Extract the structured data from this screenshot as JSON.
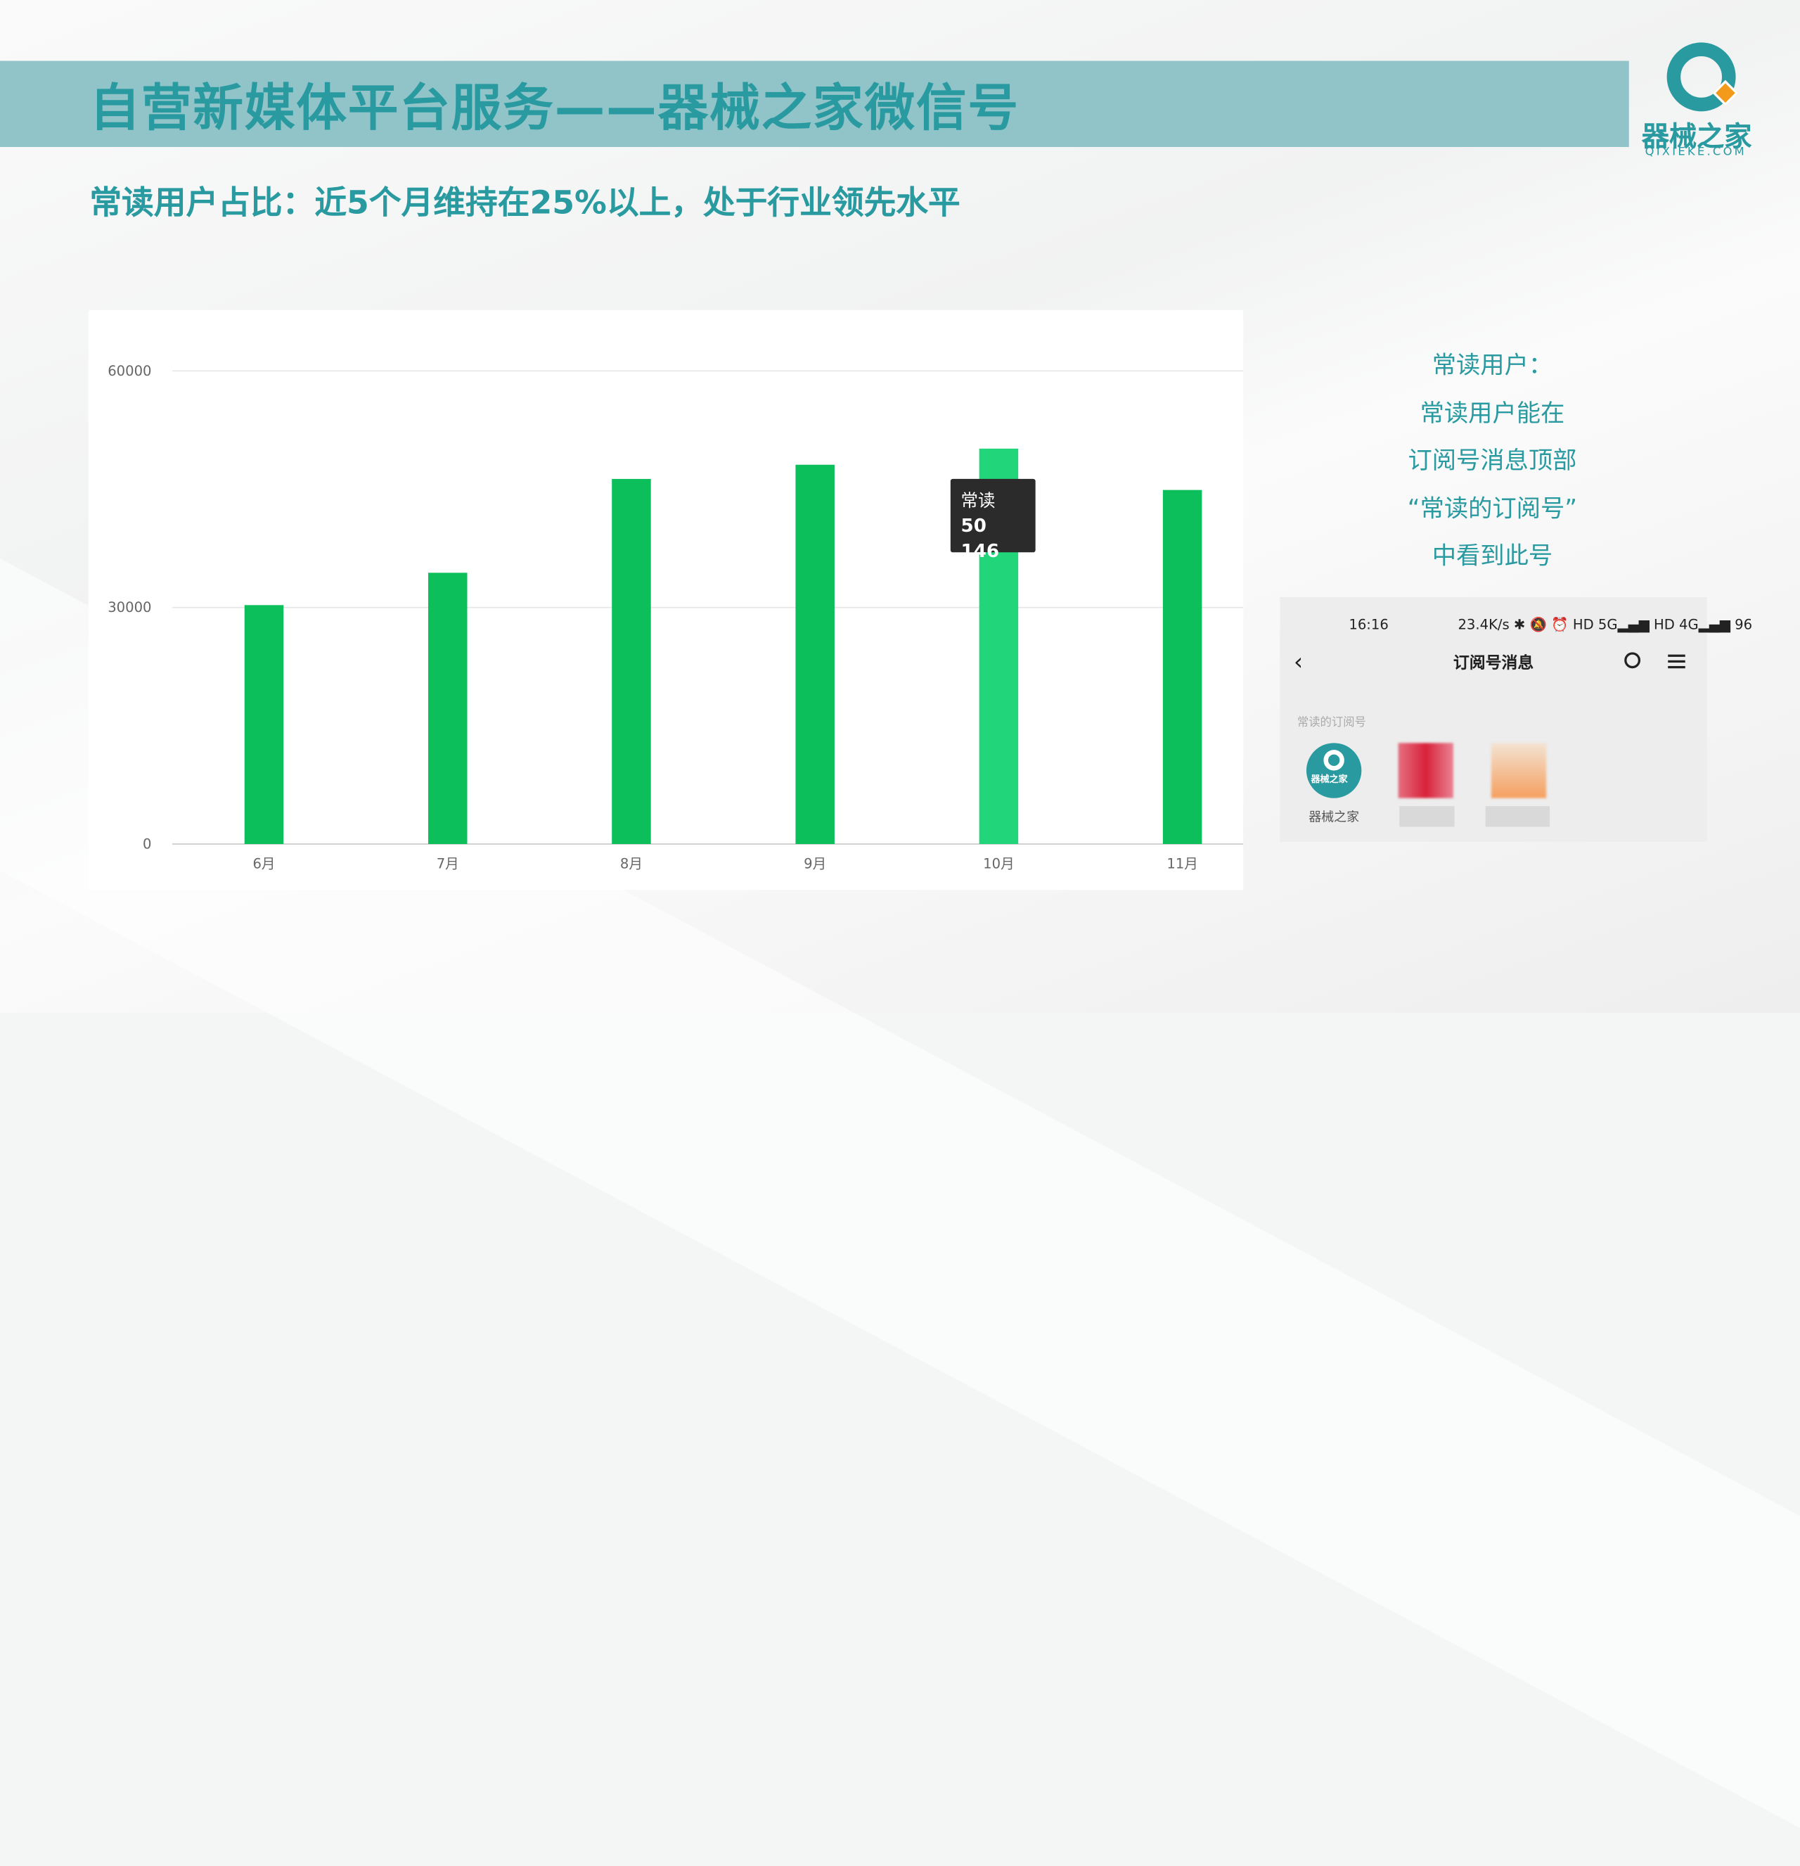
{
  "header": {
    "title": "自营新媒体平台服务——器械之家微信号",
    "subtitle": "常读用户占比：近5个月维持在25%以上，处于行业领先水平"
  },
  "logo": {
    "name": "器械之家",
    "url_text": "QIXIEKE.COM",
    "colors": {
      "teal": "#2a9aa1",
      "orange": "#f39a1b"
    }
  },
  "chart_data": {
    "type": "bar",
    "categories": [
      "6月",
      "7月",
      "8月",
      "9月",
      "10月",
      "11月"
    ],
    "values": [
      30300,
      34400,
      46300,
      48100,
      50146,
      44900
    ],
    "ylim": [
      0,
      60000
    ],
    "yticks": [
      0,
      30000,
      60000
    ],
    "grid": true,
    "colors": {
      "bar": "#0cbf5b",
      "highlight": "#21d67a"
    },
    "tooltip": {
      "category": "10月",
      "label": "常读",
      "value": "50 146"
    }
  },
  "side_note": {
    "lines": [
      "常读用户：",
      "常读用户能在",
      "订阅号消息顶部",
      "“常读的订阅号”",
      "中看到此号"
    ]
  },
  "phone": {
    "time": "16:16",
    "status": "23.4K/s ✱ 🔕 ⏰ HD 5G▂▄▆ HD 4G▂▄▆ 96",
    "title": "订阅号消息",
    "section": "常读的订阅号",
    "account_name": "器械之家",
    "avatar_text": "器械之家"
  }
}
